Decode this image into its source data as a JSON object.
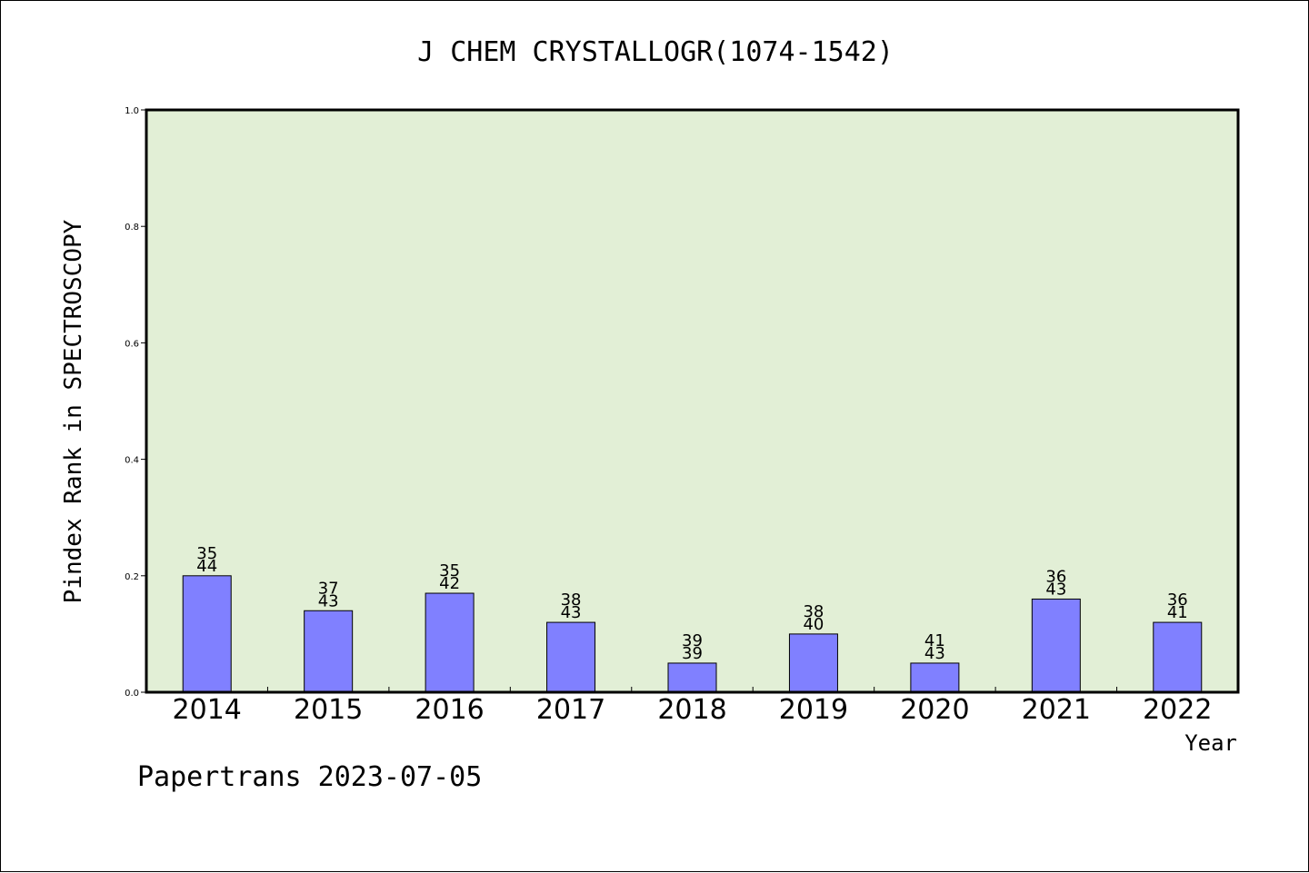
{
  "chart_data": {
    "type": "bar",
    "title": "J CHEM CRYSTALLOGR(1074-1542)",
    "xlabel": "Year",
    "ylabel": "Pindex Rank in SPECTROSCOPY",
    "footer": "Papertrans 2023-07-05",
    "categories": [
      "2014",
      "2015",
      "2016",
      "2017",
      "2018",
      "2019",
      "2020",
      "2021",
      "2022"
    ],
    "values": [
      0.2,
      0.14,
      0.17,
      0.12,
      0.05,
      0.1,
      0.05,
      0.16,
      0.12
    ],
    "labels_top": [
      "35",
      "37",
      "35",
      "38",
      "39",
      "38",
      "41",
      "36",
      "36"
    ],
    "labels_bottom": [
      "44",
      "43",
      "42",
      "43",
      "39",
      "40",
      "43",
      "43",
      "41"
    ],
    "ylim": [
      0,
      1.0
    ],
    "yticks": [
      "0.0",
      "0.2",
      "0.4",
      "0.6",
      "0.8",
      "1.0"
    ],
    "grid": false,
    "colors": {
      "plot_background": "#e2efd6",
      "bar_fill": "#8080ff",
      "bar_stroke": "#000000"
    }
  }
}
